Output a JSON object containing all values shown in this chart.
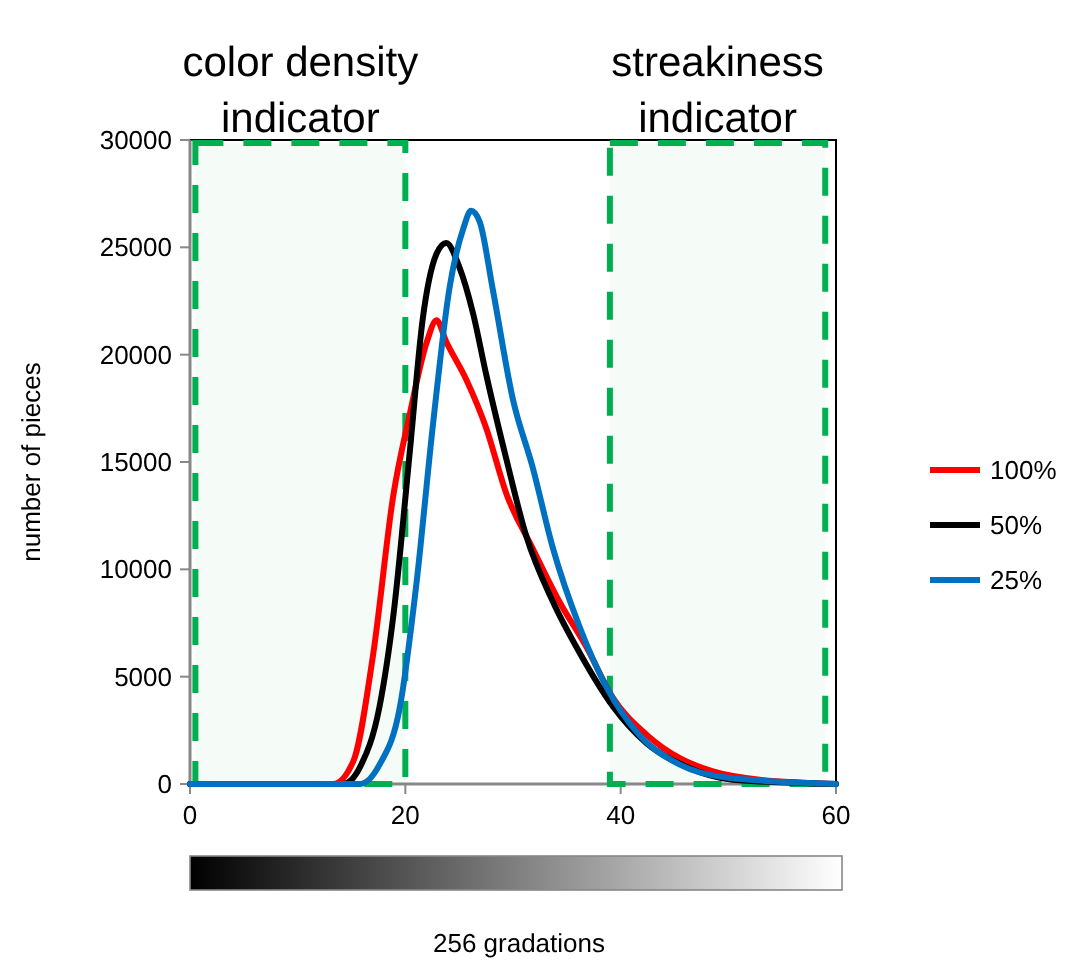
{
  "chart_data": {
    "type": "line",
    "xlabel": "256 gradations",
    "ylabel": "number of pieces",
    "xlim": [
      0,
      60
    ],
    "xticks": [
      0,
      20,
      40,
      60
    ],
    "ylim": [
      0,
      30000
    ],
    "yticks": [
      0,
      5000,
      10000,
      15000,
      20000,
      25000,
      30000
    ],
    "grid": false,
    "legend": "right",
    "marker": "none",
    "line_style": "solid",
    "bands": [
      {
        "axis": "x",
        "from": 0.5,
        "to": 20,
        "label": "color density indicator",
        "color": "#00b050"
      },
      {
        "axis": "x",
        "from": 39,
        "to": 59,
        "label": "streakiness indicator",
        "color": "#00b050"
      }
    ],
    "series": [
      {
        "name": "100%",
        "color": "#ff0000",
        "x": [
          0,
          13.3,
          15.2,
          17,
          18.9,
          20.4,
          22,
          22.9,
          23.8,
          25.7,
          27.5,
          29.4,
          31.8,
          34.3,
          36.8,
          39.3,
          42.4,
          45.5,
          48.5,
          52.9,
          60
        ],
        "values": [
          0,
          0,
          1100,
          6000,
          13500,
          17200,
          20600,
          21600,
          20600,
          18800,
          16600,
          13500,
          11000,
          8500,
          6400,
          4000,
          2300,
          1200,
          600,
          200,
          0
        ]
      },
      {
        "name": "50%",
        "color": "#000000",
        "x": [
          0,
          14.2,
          15.8,
          17.6,
          18.9,
          20.4,
          21.6,
          22.9,
          23.8,
          25,
          26.3,
          27.5,
          29.4,
          31.2,
          33.7,
          36.2,
          39.3,
          42.4,
          46.1,
          50.4,
          60
        ],
        "values": [
          0,
          0,
          800,
          3600,
          7900,
          15400,
          21600,
          24700,
          25200,
          24100,
          21900,
          19100,
          15100,
          11600,
          8500,
          6100,
          3600,
          1900,
          800,
          200,
          0
        ]
      },
      {
        "name": "25%",
        "color": "#0070c0",
        "x": [
          0,
          15.8,
          17.6,
          19.5,
          21,
          22.6,
          24.1,
          25.4,
          26.1,
          26.9,
          28.1,
          30,
          31.8,
          33.7,
          36.2,
          38.7,
          41.7,
          45.5,
          49.8,
          60
        ],
        "values": [
          0,
          0,
          900,
          3600,
          9200,
          16900,
          23100,
          25900,
          26700,
          26200,
          23100,
          17900,
          14800,
          11000,
          7300,
          4500,
          2300,
          900,
          300,
          0
        ]
      }
    ]
  }
}
